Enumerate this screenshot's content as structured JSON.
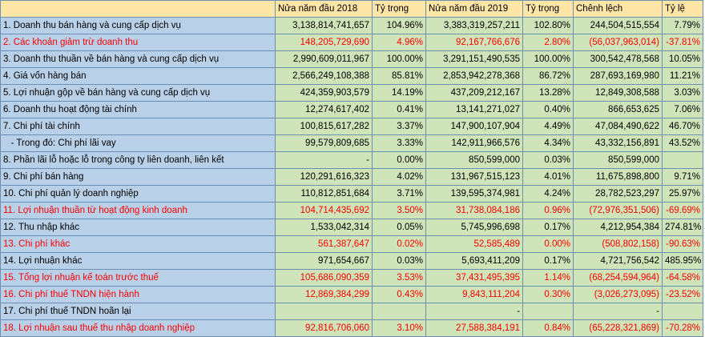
{
  "headers": [
    "",
    "Nửa năm đầu 2018",
    "Tỷ trọng",
    "Nửa năm đầu 2019",
    "Tỷ trọng",
    "Chênh lệch",
    "Tỷ lệ"
  ],
  "rows": [
    {
      "label": "1. Doanh thu bán hàng và cung cấp dịch vụ",
      "v2018": "3,138,814,741,657",
      "p2018": "104.96%",
      "v2019": "3,383,319,257,211",
      "p2019": "102.80%",
      "diff": "244,504,515,554",
      "rate": "7.79%",
      "red": false
    },
    {
      "label": "2. Các khoản giảm trừ doanh thu",
      "v2018": "148,205,729,690",
      "p2018": "4.96%",
      "v2019": "92,167,766,676",
      "p2019": "2.80%",
      "diff": "(56,037,963,014)",
      "rate": "-37.81%",
      "red": true
    },
    {
      "label": "3. Doanh thu thuần về bán hàng và cung cấp dịch vụ",
      "v2018": "2,990,609,011,967",
      "p2018": "100.00%",
      "v2019": "3,291,151,490,535",
      "p2019": "100.00%",
      "diff": "300,542,478,568",
      "rate": "10.05%",
      "red": false
    },
    {
      "label": "4. Giá vốn hàng bán",
      "v2018": "2,566,249,108,388",
      "p2018": "85.81%",
      "v2019": "2,853,942,278,368",
      "p2019": "86.72%",
      "diff": "287,693,169,980",
      "rate": "11.21%",
      "red": false
    },
    {
      "label": "5. Lợi nhuận gộp về bán hàng và cung cấp dịch vụ",
      "v2018": "424,359,903,579",
      "p2018": "14.19%",
      "v2019": "437,209,212,167",
      "p2019": "13.28%",
      "diff": "12,849,308,588",
      "rate": "3.03%",
      "red": false
    },
    {
      "label": "6. Doanh thu hoạt động tài chính",
      "v2018": "12,274,617,402",
      "p2018": "0.41%",
      "v2019": "13,141,271,027",
      "p2019": "0.40%",
      "diff": "866,653,625",
      "rate": "7.06%",
      "red": false
    },
    {
      "label": "7. Chi phí tài chính",
      "v2018": "100,815,617,282",
      "p2018": "3.37%",
      "v2019": "147,900,107,904",
      "p2019": "4.49%",
      "diff": "47,084,490,622",
      "rate": "46.70%",
      "red": false
    },
    {
      "label": "   - Trong đó: Chi phí lãi vay",
      "v2018": "99,579,809,685",
      "p2018": "3.33%",
      "v2019": "142,911,966,576",
      "p2019": "4.34%",
      "diff": "43,332,156,891",
      "rate": "43.52%",
      "red": false
    },
    {
      "label": "8. Phần lãi lỗ hoặc lỗ trong công ty liên doanh, liên kết",
      "v2018": "-",
      "p2018": "0.00%",
      "v2019": "850,599,000",
      "p2019": "0.03%",
      "diff": "850,599,000",
      "rate": "",
      "red": false
    },
    {
      "label": "9. Chi phí bán hàng",
      "v2018": "120,291,616,323",
      "p2018": "4.02%",
      "v2019": "131,967,515,123",
      "p2019": "4.01%",
      "diff": "11,675,898,800",
      "rate": "9.71%",
      "red": false
    },
    {
      "label": "10. Chi phí quản lý doanh nghiệp",
      "v2018": "110,812,851,684",
      "p2018": "3.71%",
      "v2019": "139,595,374,981",
      "p2019": "4.24%",
      "diff": "28,782,523,297",
      "rate": "25.97%",
      "red": false
    },
    {
      "label": "11. Lợi nhuận thuần từ hoạt động kinh doanh",
      "v2018": "104,714,435,692",
      "p2018": "3.50%",
      "v2019": "31,738,084,186",
      "p2019": "0.96%",
      "diff": "(72,976,351,506)",
      "rate": "-69.69%",
      "red": true
    },
    {
      "label": "12. Thu nhập khác",
      "v2018": "1,533,042,314",
      "p2018": "0.05%",
      "v2019": "5,745,996,698",
      "p2019": "0.17%",
      "diff": "4,212,954,384",
      "rate": "274.81%",
      "red": false
    },
    {
      "label": "13. Chi phí khác",
      "v2018": "561,387,647",
      "p2018": "0.02%",
      "v2019": "52,585,489",
      "p2019": "0.00%",
      "diff": "(508,802,158)",
      "rate": "-90.63%",
      "red": true
    },
    {
      "label": "14. Lợi nhuận khác",
      "v2018": "971,654,667",
      "p2018": "0.03%",
      "v2019": "5,693,411,209",
      "p2019": "0.17%",
      "diff": "4,721,756,542",
      "rate": "485.95%",
      "red": false
    },
    {
      "label": "15. Tổng lợi nhuận kế toán trước thuế",
      "v2018": "105,686,090,359",
      "p2018": "3.53%",
      "v2019": "37,431,495,395",
      "p2019": "1.14%",
      "diff": "(68,254,594,964)",
      "rate": "-64.58%",
      "red": true
    },
    {
      "label": "16. Chi phí thuế TNDN hiện hành",
      "v2018": "12,869,384,299",
      "p2018": "0.43%",
      "v2019": "9,843,111,204",
      "p2019": "0.30%",
      "diff": "(3,026,273,095)",
      "rate": "-23.52%",
      "red": true
    },
    {
      "label": "17. Chi phí thuế TNDN hoãn lại",
      "v2018": "",
      "p2018": "",
      "v2019": "-",
      "p2019": "",
      "diff": "-",
      "rate": "",
      "red": false
    },
    {
      "label": "18. Lợi nhuận sau thuế thu nhập doanh nghiệp",
      "v2018": "92,816,706,060",
      "p2018": "3.10%",
      "v2019": "27,588,384,191",
      "p2019": "0.84%",
      "diff": "(65,228,321,869)",
      "rate": "-70.28%",
      "red": true
    }
  ]
}
